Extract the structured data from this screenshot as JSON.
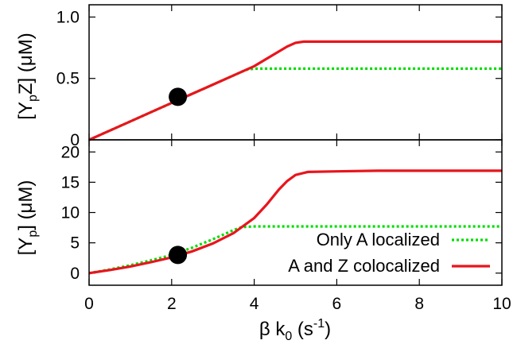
{
  "chart_data": [
    {
      "type": "line",
      "panel": "top",
      "ylabel": "[YpZ] (μM)",
      "ylabel_parts": {
        "open": "[Y",
        "sub": "p",
        "rest": "Z] (μM)"
      },
      "xlim": [
        0,
        10
      ],
      "ylim": [
        0,
        1.1
      ],
      "yticks": [
        0,
        0.5,
        1.0
      ],
      "ytick_labels": [
        "0",
        "0.5",
        "1.0"
      ],
      "series": [
        {
          "name": "Only A localized",
          "style": "dotted",
          "color": "#00dd00",
          "x": [
            0,
            0.5,
            1,
            1.5,
            2,
            2.5,
            3,
            3.5,
            3.8,
            4,
            5,
            6,
            7,
            8,
            9,
            10
          ],
          "y": [
            0,
            0.075,
            0.15,
            0.225,
            0.3,
            0.375,
            0.45,
            0.525,
            0.57,
            0.58,
            0.58,
            0.58,
            0.58,
            0.58,
            0.58,
            0.58
          ]
        },
        {
          "name": "A and Z colocalized",
          "style": "solid",
          "color": "#e8151d",
          "x": [
            0,
            0.5,
            1,
            1.5,
            2,
            2.5,
            3,
            3.5,
            4,
            4.5,
            4.8,
            5,
            5.2,
            6,
            7,
            8,
            9,
            10
          ],
          "y": [
            0,
            0.075,
            0.15,
            0.225,
            0.3,
            0.375,
            0.45,
            0.525,
            0.6,
            0.7,
            0.76,
            0.79,
            0.8,
            0.8,
            0.8,
            0.8,
            0.8,
            0.8
          ]
        }
      ],
      "marker": {
        "x": 2.15,
        "y": 0.35,
        "color": "#000000"
      }
    },
    {
      "type": "line",
      "panel": "bottom",
      "ylabel": "[Yp] (μM)",
      "ylabel_parts": {
        "open": "[Y",
        "sub": "p",
        "rest": "] (μM)"
      },
      "xlabel": "β k0 (s-1)",
      "xlabel_parts": {
        "a": "β k",
        "sub": "0",
        "b": " (s",
        "sup": "-1",
        "c": ")"
      },
      "xlim": [
        0,
        10
      ],
      "ylim": [
        -2,
        22
      ],
      "xticks": [
        0,
        2,
        4,
        6,
        8,
        10
      ],
      "xtick_labels": [
        "0",
        "2",
        "4",
        "6",
        "8",
        "10"
      ],
      "yticks": [
        0,
        5,
        10,
        15,
        20
      ],
      "ytick_labels": [
        "0",
        "5",
        "10",
        "15",
        "20"
      ],
      "legend_position": "bottom-right",
      "series": [
        {
          "name": "Only A localized",
          "style": "dotted",
          "color": "#00dd00",
          "x": [
            0,
            0.5,
            1,
            1.5,
            2,
            2.5,
            3,
            3.5,
            3.7,
            4,
            5,
            6,
            7,
            8,
            9,
            10
          ],
          "y": [
            0,
            0.6,
            1.3,
            2.1,
            3.0,
            4.2,
            5.6,
            7.1,
            7.6,
            7.7,
            7.7,
            7.7,
            7.7,
            7.7,
            7.7,
            7.7
          ]
        },
        {
          "name": "A and Z colocalized",
          "style": "solid",
          "color": "#e8151d",
          "x": [
            0,
            0.5,
            1,
            1.5,
            2,
            2.5,
            3,
            3.5,
            4,
            4.3,
            4.6,
            4.8,
            5,
            5.3,
            6,
            7,
            8,
            9,
            10
          ],
          "y": [
            0,
            0.5,
            1.1,
            1.8,
            2.6,
            3.6,
            4.9,
            6.6,
            9.1,
            11.3,
            13.8,
            15.2,
            16.2,
            16.7,
            16.8,
            16.9,
            16.9,
            16.9,
            16.9
          ]
        }
      ],
      "marker": {
        "x": 2.15,
        "y": 3.0,
        "color": "#000000"
      }
    }
  ],
  "legend": {
    "entries": [
      {
        "label": "Only A localized",
        "style": "dotted",
        "color": "#00dd00"
      },
      {
        "label": "A and Z colocalized",
        "style": "solid",
        "color": "#e8151d"
      }
    ]
  }
}
